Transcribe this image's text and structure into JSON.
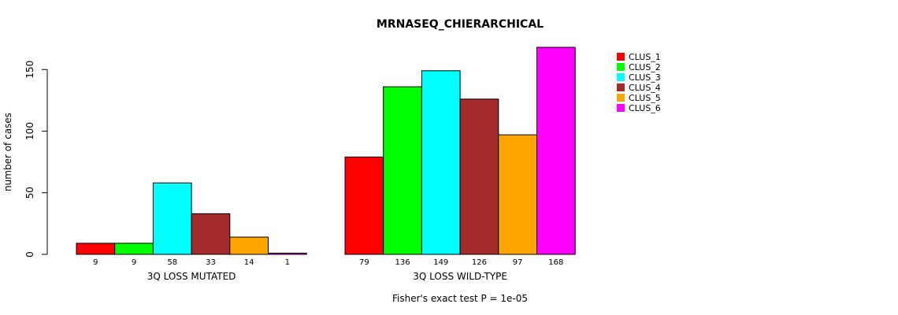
{
  "chart_data": {
    "type": "bar",
    "title": "MRNASEQ_CHIERARCHICAL",
    "ylabel": "number of cases",
    "ylim": [
      0,
      170
    ],
    "yticks": [
      0,
      50,
      100,
      150
    ],
    "footnote": "Fisher's exact test P = 1e-05",
    "groups": [
      {
        "label": "3Q LOSS MUTATED",
        "values": [
          9,
          9,
          58,
          33,
          14,
          1
        ]
      },
      {
        "label": "3Q LOSS WILD-TYPE",
        "values": [
          79,
          136,
          149,
          126,
          97,
          168
        ]
      }
    ],
    "series": [
      {
        "name": "CLUS_1",
        "color": "#ff0000"
      },
      {
        "name": "CLUS_2",
        "color": "#00ff00"
      },
      {
        "name": "CLUS_3",
        "color": "#00ffff"
      },
      {
        "name": "CLUS_4",
        "color": "#a52a2a"
      },
      {
        "name": "CLUS_5",
        "color": "#ffa500"
      },
      {
        "name": "CLUS_6",
        "color": "#ff00ff"
      }
    ],
    "legend_position": "top-right"
  }
}
